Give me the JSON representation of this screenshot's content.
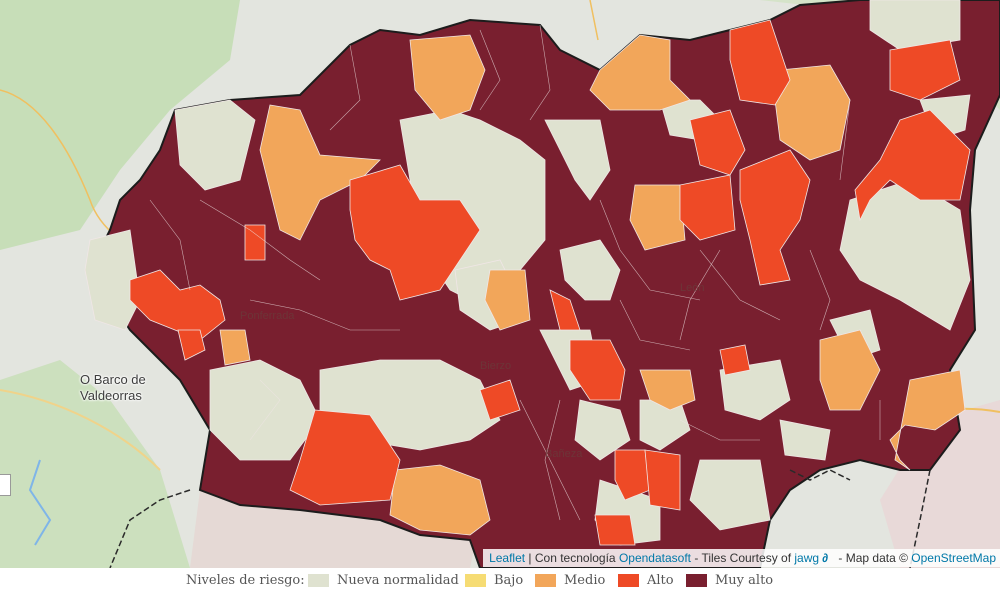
{
  "map": {
    "places": [
      {
        "label": "O Barco de",
        "label2": "Valdeorras"
      }
    ],
    "towns": [
      "Ponferrada",
      "León",
      "Bierzo",
      "Bañeza"
    ],
    "attribution": {
      "leaflet": "Leaflet",
      "sep1": " | Con tecnología ",
      "opendatasoft": "Opendatasoft",
      "tiles": " - Tiles Courtesy of ",
      "jawg": "jawg",
      "mapdata": " - Map data © ",
      "osm": "OpenStreetMap"
    }
  },
  "legend": {
    "title": "Niveles de riesgo:",
    "items": [
      {
        "label": "Nueva normalidad",
        "color": "#dfe2d0"
      },
      {
        "label": "Bajo",
        "color": "#f6dc74"
      },
      {
        "label": "Medio",
        "color": "#f2a65a"
      },
      {
        "label": "Alto",
        "color": "#ee4a26"
      },
      {
        "label": "Muy alto",
        "color": "#791f2f"
      }
    ]
  },
  "colors": {
    "muy_alto": "#791f2f",
    "alto": "#ee4a26",
    "medio": "#f2a65a",
    "nueva": "#dfe2d0",
    "border": "#1c1c1c"
  }
}
